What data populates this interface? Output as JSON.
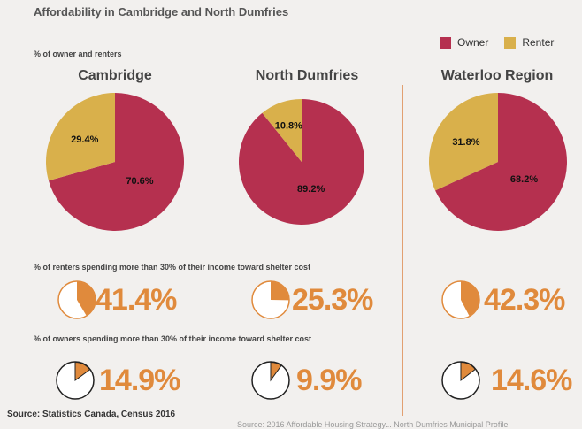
{
  "title": "Affordability in Cambridge and North Dumfries",
  "subtitle": "% of owner and renters",
  "legend": [
    {
      "label": "Owner",
      "color": "#b5304f"
    },
    {
      "label": "Renter",
      "color": "#d9b04b"
    }
  ],
  "colors": {
    "owner": "#b5304f",
    "renter": "#d9b04b",
    "accent": "#e08a3c",
    "divider": "#e2a071"
  },
  "renters_label": "% of renters spending more than 30% of their income toward shelter cost",
  "owners_label": "% of owners spending more than 30% of their income toward shelter cost",
  "source": "Source: Statistics Canada, Census 2016",
  "footer_fade": "Source: 2016 Affordable Housing Strategy... North Dumfries Municipal Profile",
  "chart_data": [
    {
      "type": "pie",
      "title": "Cambridge",
      "slices": [
        {
          "label": "Owner",
          "value": 70.6,
          "text": "70.6%"
        },
        {
          "label": "Renter",
          "value": 29.4,
          "text": "29.4%"
        }
      ]
    },
    {
      "type": "pie",
      "title": "North Dumfries",
      "slices": [
        {
          "label": "Owner",
          "value": 89.2,
          "text": "89.2%"
        },
        {
          "label": "Renter",
          "value": 10.8,
          "text": "10.8%"
        }
      ]
    },
    {
      "type": "pie",
      "title": "Waterloo Region",
      "slices": [
        {
          "label": "Owner",
          "value": 68.2,
          "text": "68.2%"
        },
        {
          "label": "Renter",
          "value": 31.8,
          "text": "31.8%"
        }
      ]
    }
  ],
  "renters_share": [
    {
      "region": "Cambridge",
      "value": 41.4,
      "text": "41.4%"
    },
    {
      "region": "North Dumfries",
      "value": 25.3,
      "text": "25.3%"
    },
    {
      "region": "Waterloo Region",
      "value": 42.3,
      "text": "42.3%"
    }
  ],
  "owners_share": [
    {
      "region": "Cambridge",
      "value": 14.9,
      "text": "14.9%"
    },
    {
      "region": "North Dumfries",
      "value": 9.9,
      "text": "9.9%"
    },
    {
      "region": "Waterloo Region",
      "value": 14.6,
      "text": "14.6%"
    }
  ]
}
